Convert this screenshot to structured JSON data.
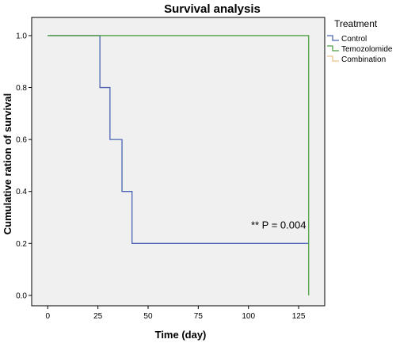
{
  "chart_data": {
    "type": "line",
    "step": true,
    "title": "Survival analysis",
    "xlabel": "Time (day)",
    "ylabel": "Cumulative ration of survival",
    "xlim": [
      -8,
      138
    ],
    "ylim": [
      -0.04,
      1.07
    ],
    "xticks": [
      0,
      25,
      50,
      75,
      100,
      125
    ],
    "yticks": [
      0.0,
      0.2,
      0.4,
      0.6,
      0.8,
      1.0
    ],
    "ytick_labels": [
      "0.0",
      "0.2",
      "0.4",
      "0.6",
      "0.8",
      "1.0"
    ],
    "grid": false,
    "background": "#f0f0f0",
    "legend": {
      "title": "Treatment",
      "placement": "right"
    },
    "series": [
      {
        "name": "Control",
        "color": "#4a63b4",
        "x": [
          0,
          26,
          26,
          31,
          31,
          37,
          37,
          42,
          42,
          130
        ],
        "y": [
          1.0,
          1.0,
          0.8,
          0.8,
          0.6,
          0.6,
          0.4,
          0.4,
          0.2,
          0.2
        ]
      },
      {
        "name": "Temozolomide",
        "color": "#4fa044",
        "x": [
          0,
          130,
          130
        ],
        "y": [
          1.0,
          1.0,
          0.0
        ]
      },
      {
        "name": "Combination",
        "color": "#e8c58a",
        "x": [],
        "y": []
      }
    ],
    "annotations": [
      {
        "text": "** P = 0.004",
        "x": 115,
        "y": 0.27
      }
    ]
  }
}
